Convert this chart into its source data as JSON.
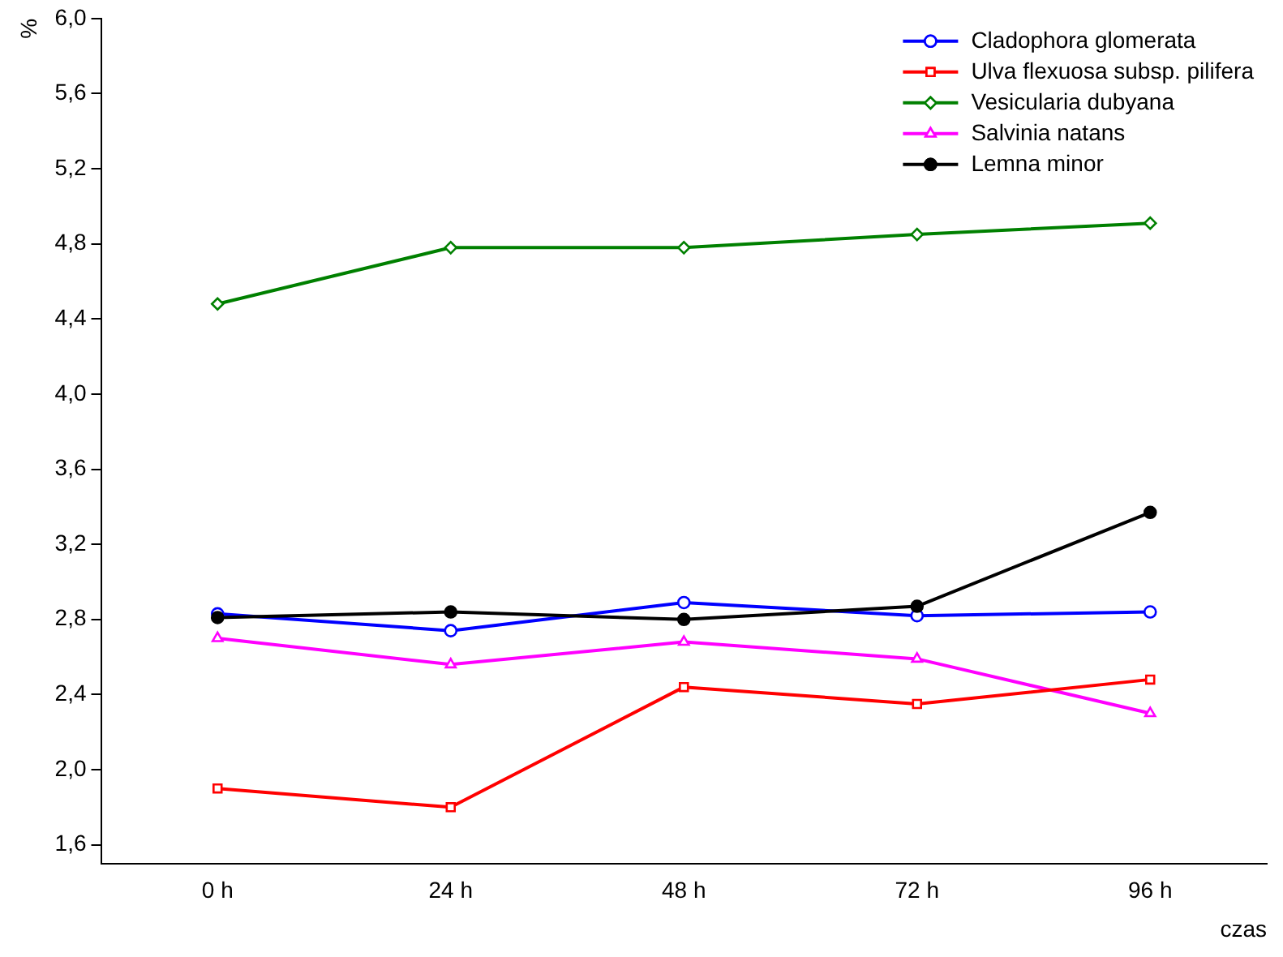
{
  "chart_data": {
    "type": "line",
    "xlabel": "czas",
    "ylabel": "%",
    "categories": [
      "0 h",
      "24 h",
      "48 h",
      "72 h",
      "96 h"
    ],
    "series": [
      {
        "name": "Cladophora glomerata",
        "color": "#0000ff",
        "marker": "circle",
        "values": [
          2.83,
          2.74,
          2.89,
          2.82,
          2.84
        ]
      },
      {
        "name": "Ulva flexuosa subsp. pilifera",
        "color": "#ff0000",
        "marker": "square",
        "values": [
          1.9,
          1.8,
          2.44,
          2.35,
          2.48
        ]
      },
      {
        "name": "Vesicularia dubyana",
        "color": "#008000",
        "marker": "diamond",
        "values": [
          4.48,
          4.78,
          4.78,
          4.85,
          4.91
        ]
      },
      {
        "name": "Salvinia natans",
        "color": "#ff00ff",
        "marker": "triangle",
        "values": [
          2.7,
          2.56,
          2.68,
          2.59,
          2.3
        ]
      },
      {
        "name": "Lemna minor",
        "color": "#000000",
        "marker": "circle",
        "values": [
          2.81,
          2.84,
          2.8,
          2.87,
          3.37
        ]
      }
    ],
    "ylim": [
      1.5,
      6.0
    ],
    "yticks": [
      {
        "value": 1.6,
        "label": "1,6"
      },
      {
        "value": 2.0,
        "label": "2,0"
      },
      {
        "value": 2.4,
        "label": "2,4"
      },
      {
        "value": 2.8,
        "label": "2,8"
      },
      {
        "value": 3.2,
        "label": "3,2"
      },
      {
        "value": 3.6,
        "label": "3,6"
      },
      {
        "value": 4.0,
        "label": "4,0"
      },
      {
        "value": 4.4,
        "label": "4,4"
      },
      {
        "value": 4.8,
        "label": "4,8"
      },
      {
        "value": 5.2,
        "label": "5,2"
      },
      {
        "value": 5.6,
        "label": "5,6"
      },
      {
        "value": 6.0,
        "label": "6,0"
      }
    ],
    "grid": false,
    "legend": "top right",
    "line_style": "solid"
  }
}
